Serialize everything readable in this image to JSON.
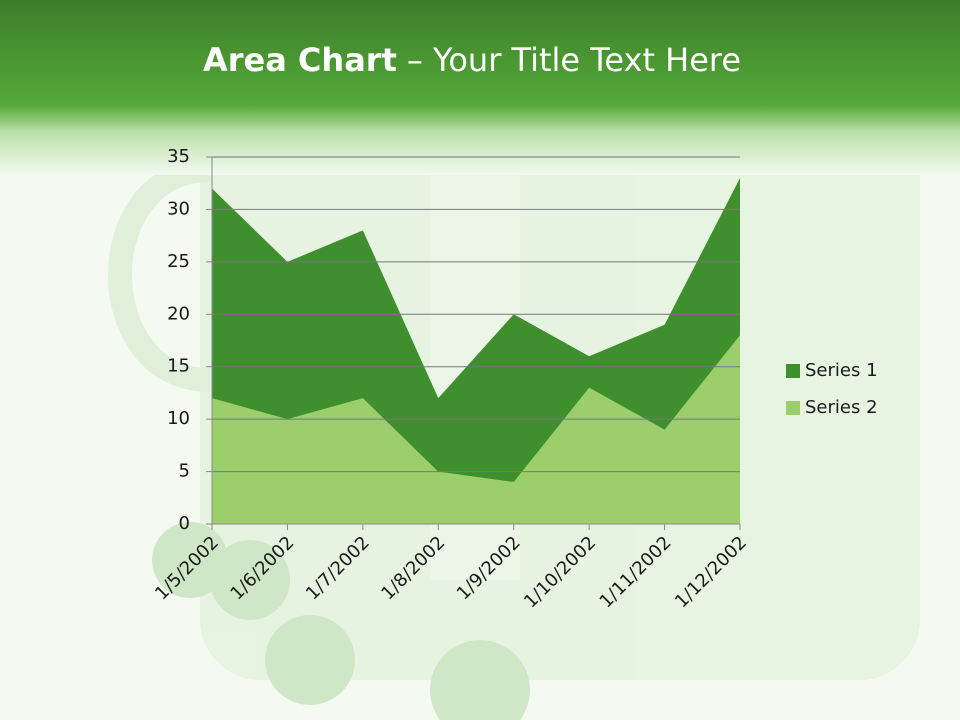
{
  "chart_data": {
    "type": "area",
    "title_parts": [
      "Area Chart",
      "– Your Title Text Here"
    ],
    "categories": [
      "1/5/2002",
      "1/6/2002",
      "1/7/2002",
      "1/8/2002",
      "1/9/2002",
      "1/10/2002",
      "1/11/2002",
      "1/12/2002"
    ],
    "series": [
      {
        "name": "Series 1",
        "color": "#3f8f2f",
        "values": [
          32,
          25,
          28,
          12,
          20,
          16,
          19,
          33
        ]
      },
      {
        "name": "Series 2",
        "color": "#9ccf6b",
        "values": [
          12,
          10,
          12,
          5,
          4,
          13,
          9,
          18
        ]
      }
    ],
    "ylim": [
      0,
      35
    ],
    "yticks": [
      0,
      5,
      10,
      15,
      20,
      25,
      30,
      35
    ],
    "grid": true,
    "legend": "right"
  }
}
